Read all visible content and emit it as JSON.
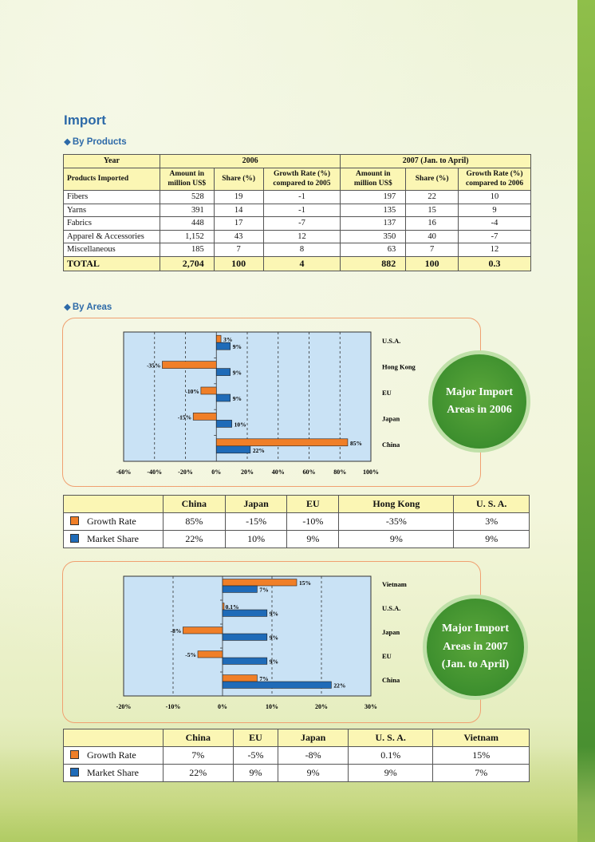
{
  "title": "Import",
  "by_products": {
    "heading": "By Products",
    "header": {
      "year": "Year",
      "y2006": "2006",
      "y2007": "2007 (Jan. to April)",
      "products": "Products  Imported",
      "amount_l1": "Amount in",
      "amount_l2": "million US$",
      "share": "Share (%)",
      "growth06_l1": "Growth Rate (%)",
      "growth06_l2": "compared to 2005",
      "growth07_l1": "Growth Rate (%)",
      "growth07_l2": "compared to 2006"
    },
    "rows": [
      {
        "product": "Fibers",
        "amt06": "528",
        "sh06": "19",
        "gr06": "-1",
        "amt07": "197",
        "sh07": "22",
        "gr07": "10"
      },
      {
        "product": "Yarns",
        "amt06": "391",
        "sh06": "14",
        "gr06": "-1",
        "amt07": "135",
        "sh07": "15",
        "gr07": "9"
      },
      {
        "product": "Fabrics",
        "amt06": "448",
        "sh06": "17",
        "gr06": "-7",
        "amt07": "137",
        "sh07": "16",
        "gr07": "-4"
      },
      {
        "product": "Apparel & Accessories",
        "amt06": "1,152",
        "sh06": "43",
        "gr06": "12",
        "amt07": "350",
        "sh07": "40",
        "gr07": "-7"
      },
      {
        "product": "Miscellaneous",
        "amt06": "185",
        "sh06": "7",
        "gr06": "8",
        "amt07": "63",
        "sh07": "7",
        "gr07": "12"
      }
    ],
    "total": {
      "product": "TOTAL",
      "amt06": "2,704",
      "sh06": "100",
      "gr06": "4",
      "amt07": "882",
      "sh07": "100",
      "gr07": "0.3"
    }
  },
  "by_areas": {
    "heading": "By Areas"
  },
  "colors": {
    "growth": "#f07f28",
    "share": "#1f6bb8",
    "plot_bg": "#c9e2f5"
  },
  "chart_data": [
    {
      "type": "bar",
      "orientation": "horizontal",
      "caption": "Major Import\nAreas in 2006",
      "categories": [
        "U.S.A.",
        "Hong Kong",
        "EU",
        "Japan",
        "China"
      ],
      "series": [
        {
          "name": "Growth Rate",
          "values": [
            3,
            -35,
            -10,
            -15,
            85
          ],
          "labels": [
            "3%",
            "-35%",
            "-10%",
            "-15%",
            "85%"
          ]
        },
        {
          "name": "Market Share",
          "values": [
            9,
            9,
            9,
            10,
            22
          ],
          "labels": [
            "9%",
            "9%",
            "9%",
            "10%",
            "22%"
          ]
        }
      ],
      "xlim": [
        -60,
        100
      ],
      "xticks": [
        -60,
        -40,
        -20,
        0,
        20,
        40,
        60,
        80,
        100
      ],
      "xtick_labels": [
        "-60%",
        "-40%",
        "-20%",
        "0%",
        "20%",
        "40%",
        "60%",
        "80%",
        "100%"
      ],
      "grid": "dashed vertical",
      "table": {
        "columns": [
          "China",
          "Japan",
          "EU",
          "Hong Kong",
          "U. S. A."
        ],
        "growth": [
          "85%",
          "-15%",
          "-10%",
          "-35%",
          "3%"
        ],
        "share": [
          "22%",
          "10%",
          "9%",
          "9%",
          "9%"
        ]
      }
    },
    {
      "type": "bar",
      "orientation": "horizontal",
      "caption": "Major  Import\nAreas in 2007\n(Jan. to April)",
      "categories": [
        "Vietnam",
        "U.S.A.",
        "Japan",
        "EU",
        "China"
      ],
      "series": [
        {
          "name": "Growth Rate",
          "values": [
            15,
            0.1,
            -8,
            -5,
            7
          ],
          "labels": [
            "15%",
            "0.1%",
            "-8%",
            "-5%",
            "7%"
          ]
        },
        {
          "name": "Market Share",
          "values": [
            7,
            9,
            9,
            9,
            22
          ],
          "labels": [
            "7%",
            "9%",
            "9%",
            "9%",
            "22%"
          ]
        }
      ],
      "xlim": [
        -20,
        30
      ],
      "xticks": [
        -20,
        -10,
        0,
        10,
        20,
        30
      ],
      "xtick_labels": [
        "-20%",
        "-10%",
        "0%",
        "10%",
        "20%",
        "30%"
      ],
      "grid": "dashed vertical",
      "table": {
        "columns": [
          "China",
          "EU",
          "Japan",
          "U. S. A.",
          "Vietnam"
        ],
        "growth": [
          "7%",
          "-5%",
          "-8%",
          "0.1%",
          "15%"
        ],
        "share": [
          "22%",
          "9%",
          "9%",
          "9%",
          "7%"
        ]
      }
    }
  ]
}
